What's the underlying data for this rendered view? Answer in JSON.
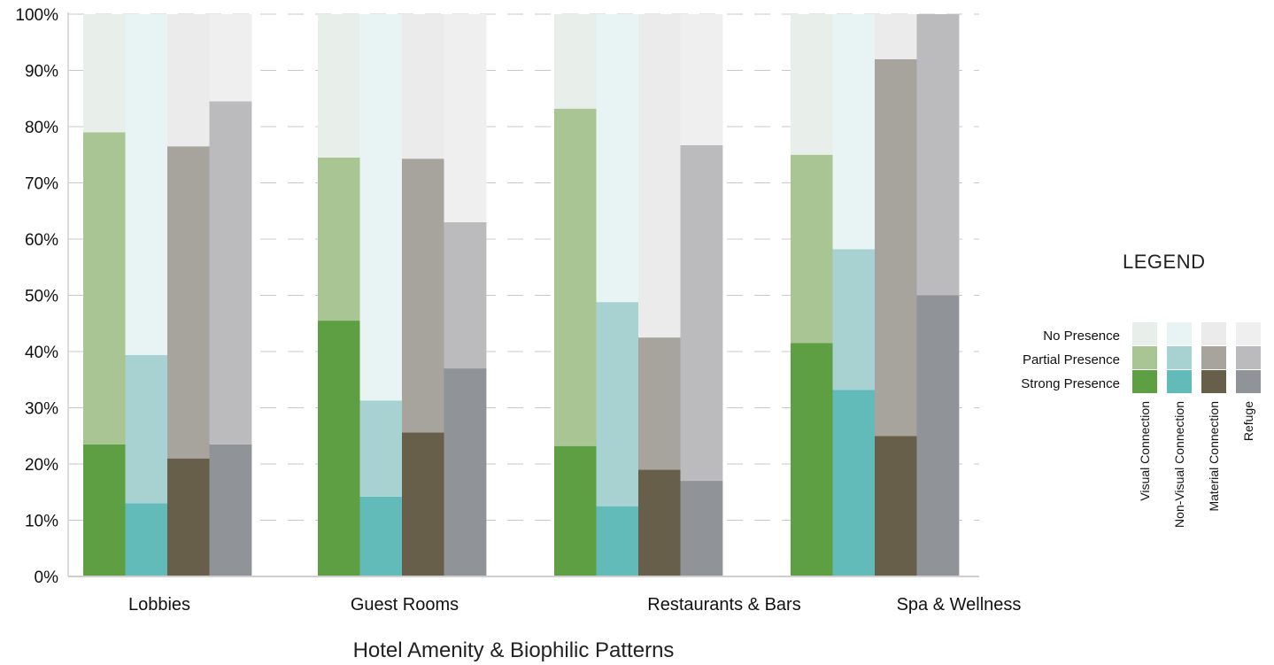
{
  "chart_data": {
    "type": "bar",
    "subtype": "stacked-grouped",
    "xlabel": "Hotel Amenity & Biophilic Patterns",
    "ylabel": "",
    "ylim": [
      0,
      100
    ],
    "y_ticks": [
      "0%",
      "10%",
      "20%",
      "30%",
      "40%",
      "50%",
      "60%",
      "70%",
      "80%",
      "90%",
      "100%"
    ],
    "grid": "horizontal dashed",
    "categories": [
      "Lobbies",
      "Guest Rooms",
      "Restaurants & Bars",
      "Spa & Wellness"
    ],
    "levels": [
      "Strong Presence",
      "Partial Presence",
      "No Presence"
    ],
    "patterns": [
      {
        "name": "Visual Connection",
        "colors": {
          "strong": "#5f9f43",
          "partial": "#a9c593",
          "none": "#e8efea"
        },
        "strong": [
          23.5,
          45.5,
          23.2,
          41.5
        ],
        "partial": [
          55.5,
          29.0,
          60.0,
          33.5
        ],
        "none": [
          21.0,
          25.5,
          16.8,
          25.0
        ]
      },
      {
        "name": "Non-Visual Connection",
        "colors": {
          "strong": "#63bbb9",
          "partial": "#a8d2d1",
          "none": "#e8f3f4"
        },
        "strong": [
          13.0,
          14.2,
          12.5,
          33.2
        ],
        "partial": [
          26.4,
          17.1,
          36.3,
          25.0
        ],
        "none": [
          60.6,
          68.7,
          51.2,
          41.8
        ]
      },
      {
        "name": "Material Connection",
        "colors": {
          "strong": "#675f4a",
          "partial": "#a6a49c",
          "none": "#ebebeb"
        },
        "strong": [
          21.0,
          25.6,
          19.0,
          25.0
        ],
        "partial": [
          55.5,
          48.7,
          23.5,
          67.0
        ],
        "none": [
          23.5,
          25.7,
          57.5,
          8.0
        ]
      },
      {
        "name": "Refuge",
        "colors": {
          "strong": "#909397",
          "partial": "#bbbbbe",
          "none": "#efefef"
        },
        "strong": [
          23.5,
          37.0,
          17.0,
          50.0
        ],
        "partial": [
          61.0,
          26.0,
          59.7,
          50.0
        ],
        "none": [
          15.5,
          37.0,
          23.3,
          0.0
        ]
      }
    ],
    "legend": {
      "title": "LEGEND",
      "position": "right",
      "rows": [
        "No Presence",
        "Partial Presence",
        "Strong Presence"
      ]
    }
  }
}
